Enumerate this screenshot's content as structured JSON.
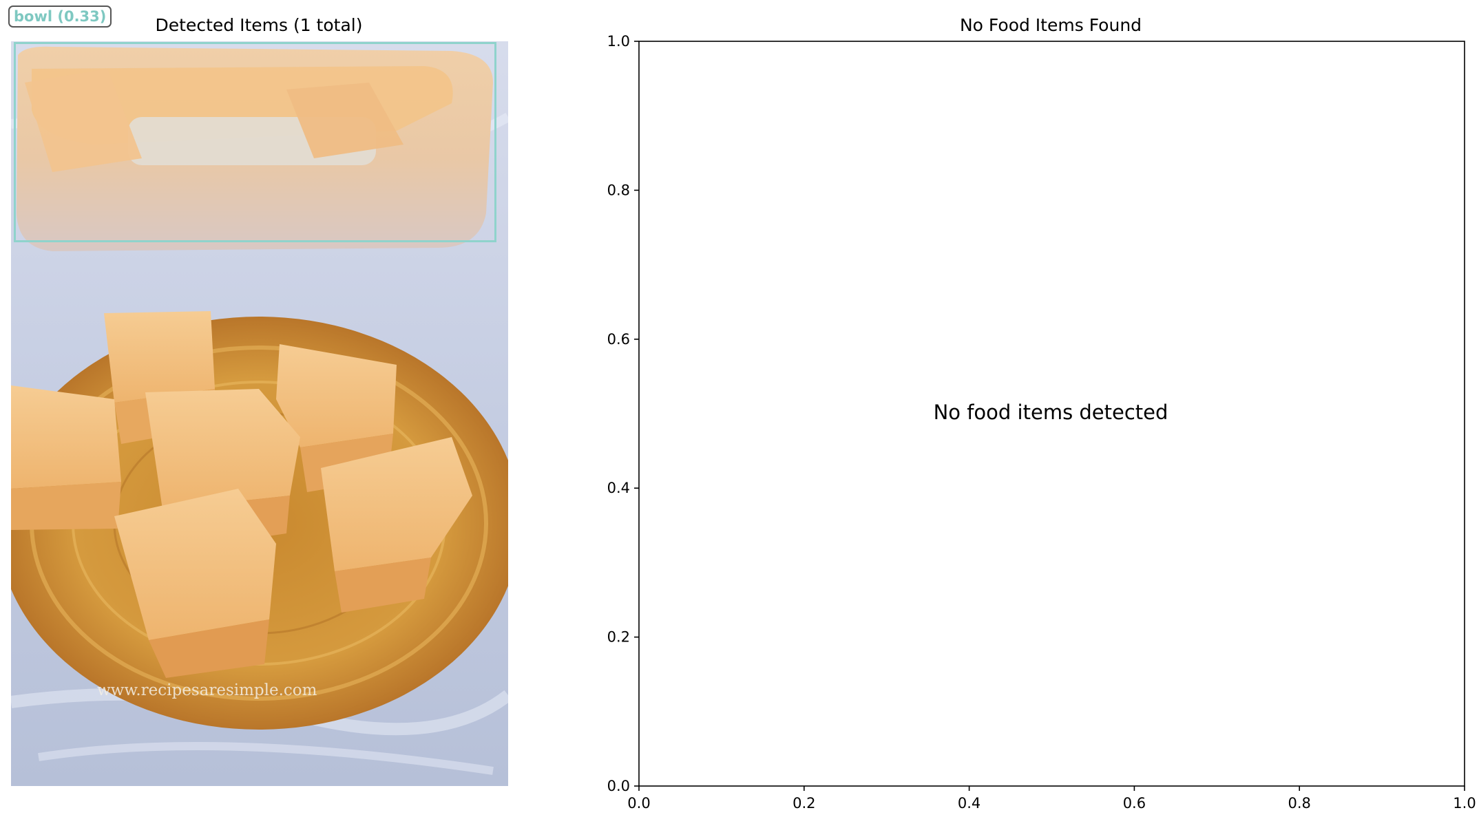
{
  "left_panel": {
    "title": "Detected Items (1 total)",
    "detection": {
      "label": "bowl (0.33)",
      "color": "#8fd3cc"
    },
    "photo_watermark": "www.recipesaresimple.com"
  },
  "chart_data": {
    "type": "scatter",
    "title": "No Food Items Found",
    "annotation": "No food items detected",
    "x": [],
    "y": [],
    "xlim": [
      0.0,
      1.0
    ],
    "ylim": [
      0.0,
      1.0
    ],
    "xticks": [
      "0.0",
      "0.2",
      "0.4",
      "0.6",
      "0.8",
      "1.0"
    ],
    "yticks": [
      "0.0",
      "0.2",
      "0.4",
      "0.6",
      "0.8",
      "1.0"
    ],
    "xlabel": "",
    "ylabel": "",
    "grid": false
  }
}
